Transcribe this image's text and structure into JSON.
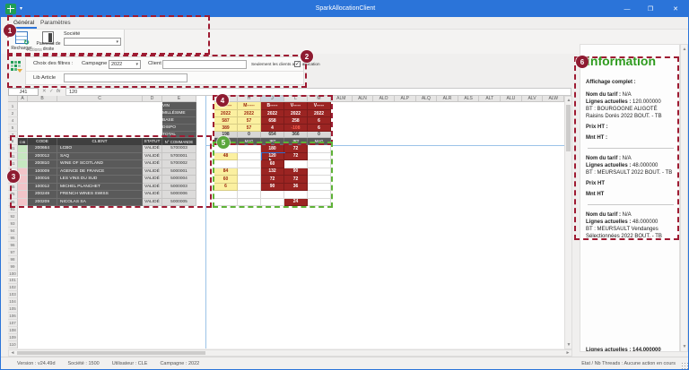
{
  "window": {
    "title": "SparkAllocationClient",
    "controls": {
      "minimize": "—",
      "maximize": "❐",
      "close": "✕"
    }
  },
  "ribbon": {
    "tabs": [
      {
        "label": "Général",
        "active": true
      },
      {
        "label": "Paramètres",
        "active": false
      }
    ],
    "buttons": [
      {
        "label": "Recharger",
        "icon": "reload-grid-icon"
      },
      {
        "label": "Panneau de droite",
        "icon": "right-panel-icon"
      }
    ],
    "societe_label": "Société",
    "societe_value": "",
    "group_label": "Actions"
  },
  "filters": {
    "row1_label": "Choix des filtres :",
    "campagne_label": "Campagne",
    "campagne_value": "2022",
    "client_label": "Client",
    "client_value": "",
    "checkbox_label": "Seulement les clients avec allocation",
    "checkbox_checked": true,
    "check_glyph": "✓",
    "row2_label": "Lib Article",
    "row2_value": ""
  },
  "formula_bar": {
    "cell_ref": "J41",
    "btn_cancel": "✕",
    "btn_ok": "✓",
    "btn_fx": "fx",
    "value": "120"
  },
  "grid": {
    "column_letters": [
      "A",
      "B",
      "C",
      "D",
      "E",
      "G",
      "H",
      "J",
      "L",
      "M",
      "ALM",
      "ALN",
      "ALO",
      "ALP",
      "ALQ",
      "ALR",
      "ALS",
      "ALT",
      "ALU",
      "ALV",
      "ALW"
    ],
    "selected_column": "J",
    "top_row_numbers": [
      "1",
      "2",
      "4",
      "5",
      "7",
      "8"
    ],
    "row_labels": [
      "VIN",
      "MILLÉSIME",
      "BASE",
      "DISPO",
      "TOTAL"
    ],
    "wine_columns": [
      {
        "letter": "G",
        "header": "B------",
        "millesime": "2022",
        "base": "587",
        "dispo": "389",
        "total": "198",
        "unit": "MAG",
        "style": "yellow"
      },
      {
        "letter": "H",
        "header": "M-----",
        "millesime": "2022",
        "base": "57",
        "dispo": "57",
        "total": "0",
        "unit": "MAG",
        "style": "yellow"
      },
      {
        "letter": "J",
        "header": "B-----",
        "millesime": "2022",
        "base": "658",
        "dispo": "4",
        "total": "654",
        "unit": "JRT",
        "style": "red"
      },
      {
        "letter": "L",
        "header": "V-----",
        "millesime": "2022",
        "base": "258",
        "dispo": "-108",
        "total": "366",
        "unit": "JRT",
        "style": "red"
      },
      {
        "letter": "M",
        "header": "V-----",
        "millesime": "2022",
        "base": "6",
        "dispo": "6",
        "total": "0",
        "unit": "MAG",
        "style": "red"
      }
    ],
    "client_table": {
      "headers": {
        "flag": "CIB",
        "code": "CODE",
        "client": "CLIENT",
        "statut": "STATUT",
        "commande": "N° COMMANDE"
      },
      "rows": [
        {
          "num": "31",
          "code": "200664",
          "client": "LCBO",
          "statut": "VALIDÉ",
          "commande": "5700003",
          "flag": "green",
          "g": "",
          "h": "",
          "j": "180",
          "l": "72",
          "m": ""
        },
        {
          "num": "41",
          "code": "200012",
          "client": "SAQ",
          "statut": "VALIDÉ",
          "commande": "5700001",
          "flag": "green",
          "g": "48",
          "h": "",
          "j": "120",
          "l": "72",
          "m": "",
          "selected": "j"
        },
        {
          "num": "51",
          "code": "200810",
          "client": "WINE OF SCOTLAND",
          "statut": "VALIDÉ",
          "commande": "5700002",
          "flag": "green",
          "g": "",
          "h": "",
          "j": "60",
          "l": "",
          "m": ""
        },
        {
          "num": "55",
          "code": "100009",
          "client": "AGENCE DE FRANCE",
          "statut": "VALIDÉ",
          "commande": "5000001",
          "flag": "pink",
          "g": "84",
          "h": "",
          "j": "132",
          "l": "90",
          "m": ""
        },
        {
          "num": "61",
          "code": "100016",
          "client": "LES VINS DU SUD",
          "statut": "VALIDÉ",
          "commande": "5000004",
          "flag": "pink",
          "g": "60",
          "h": "",
          "j": "72",
          "l": "72",
          "m": ""
        },
        {
          "num": "65",
          "code": "100012",
          "client": "MICHEL PLANCHET",
          "statut": "VALIDÉ",
          "commande": "5000003",
          "flag": "pink",
          "g": "6",
          "h": "",
          "j": "90",
          "l": "36",
          "m": ""
        },
        {
          "num": "75",
          "code": "200249",
          "client": "FRENCH WINES SWISS",
          "statut": "VALIDÉ",
          "commande": "5000006",
          "flag": "pink",
          "g": "",
          "h": "",
          "j": "",
          "l": "",
          "m": ""
        },
        {
          "num": "85",
          "code": "200209",
          "client": "NICOLAS SA",
          "statut": "VALIDÉ",
          "commande": "5000005",
          "flag": "pink",
          "g": "",
          "h": "",
          "j": "",
          "l": "24",
          "m": ""
        }
      ]
    },
    "empty_row_numbers": [
      "91",
      "92",
      "93",
      "94",
      "95",
      "96",
      "97",
      "98",
      "99",
      "100",
      "101",
      "102",
      "103",
      "104",
      "105",
      "106",
      "107",
      "108",
      "109",
      "110"
    ]
  },
  "info_panel": {
    "title": "information",
    "header": "Affichage complet :",
    "blocks": [
      {
        "lines": [
          {
            "label": "Nom du tarif :",
            "value": " N/A"
          },
          {
            "label": "Lignes actuelles :",
            "value": " 120.000000"
          }
        ],
        "product": "BT : BOURGOGNE ALIGOTÉ Raisins Dorés 2022 BOUT. - TB",
        "extra": [
          "Prix HT :",
          "Mnt HT :"
        ]
      },
      {
        "lines": [
          {
            "label": "Nom du tarif :",
            "value": " N/A"
          },
          {
            "label": "Lignes actuelles :",
            "value": " 48.000000"
          }
        ],
        "product": "BT : MEURSAULT 2022 BOUT. - TB",
        "extra": [
          "Prix HT",
          "Mnt HT"
        ]
      },
      {
        "lines": [
          {
            "label": "Nom du tarif :",
            "value": " N/A"
          },
          {
            "label": "Lignes actuelles :",
            "value": " 48.000000"
          }
        ],
        "product": "BT : MEURSAULT Vendanges Sélectionnées 2022 BOUT. - TB",
        "extra": []
      }
    ],
    "clipped_line": {
      "label": "Lignes actuelles :",
      "value": " 144.000000"
    }
  },
  "status_bar": {
    "items": [
      {
        "label": "Version :",
        "value": "v24.49d"
      },
      {
        "label": "Société :",
        "value": "1500"
      },
      {
        "label": "Utilisateur :",
        "value": "CLE"
      },
      {
        "label": "Campagne :",
        "value": "2022"
      }
    ],
    "right": "Etat / Nb Threads :   Aucune action en cours"
  },
  "annotations": {
    "badges": [
      "1",
      "2",
      "3",
      "4",
      "5",
      "6"
    ]
  },
  "colors": {
    "titlebar_blue": "#2b74d9",
    "dark_red_cell": "#9b2422",
    "yellow_cell": "#fbf0a0",
    "annotation_red": "#9e1b32",
    "annotation_green": "#5eb237",
    "info_green": "#2e9b1e",
    "flag_green": "#c6e7c0",
    "flag_pink": "#f2c4c8"
  }
}
